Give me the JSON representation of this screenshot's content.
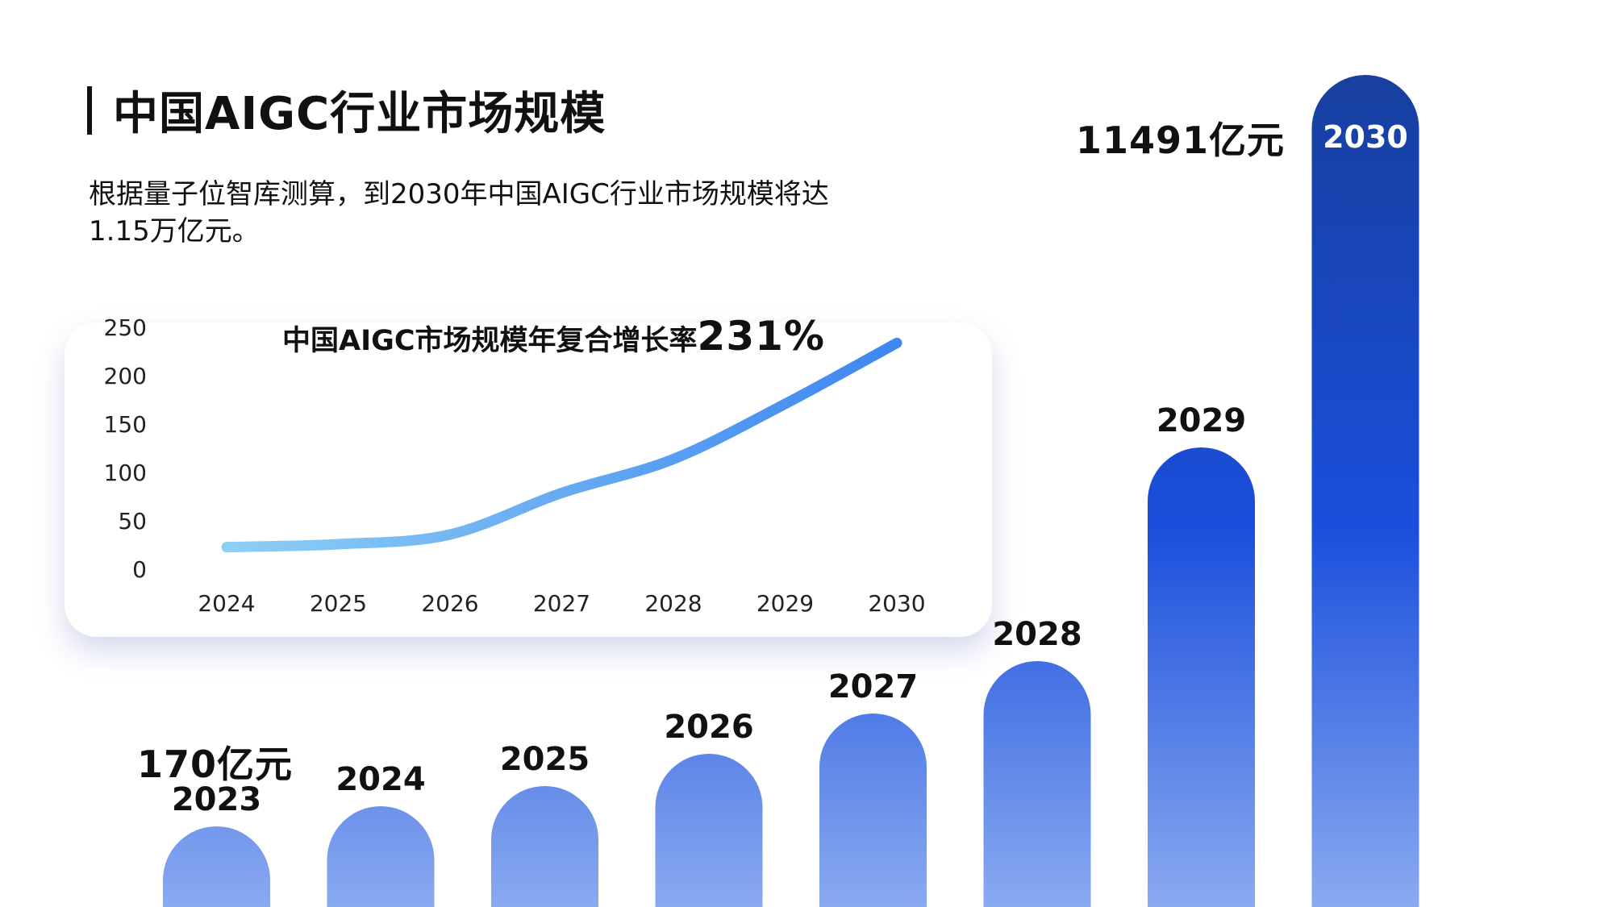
{
  "header": {
    "title": "中国AIGC行业市场规模",
    "subtitle_line1": "根据量子位智库测算，到2030年中国AIGC行业市场规模将达",
    "subtitle_line2": "1.15万亿元。"
  },
  "colors": {
    "bar_top": "#173f9e",
    "bar_mid": "#1a4fdc",
    "bar_bottom": "#8aaaf0",
    "line_start": "#8fd0f5",
    "line_end": "#3d86f0"
  },
  "chart_data": [
    {
      "type": "line",
      "title": "中国AIGC市场规模年复合增长率",
      "title_emphasis": "231%",
      "x": [
        "2024",
        "2025",
        "2026",
        "2027",
        "2028",
        "2029",
        "2030"
      ],
      "series": [
        {
          "values": [
            22,
            25,
            35,
            78,
            113,
            170,
            233
          ]
        }
      ],
      "yticks": [
        "250",
        "200",
        "150",
        "100",
        "50",
        "0"
      ],
      "ylim": [
        0,
        250
      ],
      "grid": false,
      "legend": "none"
    },
    {
      "type": "bar",
      "categories": [
        "2023",
        "2024",
        "2025",
        "2026",
        "2027",
        "2028",
        "2029",
        "2030"
      ],
      "values": [
        170,
        500,
        800,
        1200,
        1750,
        2800,
        5700,
        11491
      ],
      "value_labels": [
        {
          "index": 0,
          "text": "170亿元"
        },
        {
          "index": 7,
          "text": "11491亿元"
        }
      ],
      "category_label_inside_last": true,
      "grid": false,
      "legend": "none"
    }
  ]
}
